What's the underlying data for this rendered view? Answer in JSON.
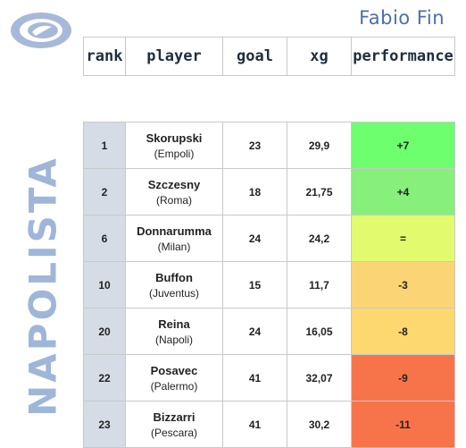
{
  "author": "Fabio Fin",
  "brand": "NAPOLISTA",
  "columns": {
    "rank": "rank",
    "player": "player",
    "goal": "goal",
    "xg": "xg",
    "performance": "performance"
  },
  "rows": [
    {
      "rank": "1",
      "name": "Skorupski",
      "team": "(Empoli)",
      "goal": "23",
      "xg": "29,9",
      "performance": "+7",
      "color": "#6eff6e"
    },
    {
      "rank": "2",
      "name": "Szczesny",
      "team": "(Roma)",
      "goal": "18",
      "xg": "21,75",
      "performance": "+4",
      "color": "#86f07a"
    },
    {
      "rank": "6",
      "name": "Donnarumma",
      "team": "(Milan)",
      "goal": "24",
      "xg": "24,2",
      "performance": "=",
      "color": "#e2fb6e"
    },
    {
      "rank": "10",
      "name": "Buffon",
      "team": "(Juventus)",
      "goal": "15",
      "xg": "11,7",
      "performance": "-3",
      "color": "#fbd476"
    },
    {
      "rank": "20",
      "name": "Reina",
      "team": "(Napoli)",
      "goal": "24",
      "xg": "16,05",
      "performance": "-8",
      "color": "#fdd86e"
    },
    {
      "rank": "22",
      "name": "Posavec",
      "team": "(Palermo)",
      "goal": "41",
      "xg": "32,07",
      "performance": "-9",
      "color": "#f7744a"
    },
    {
      "rank": "23",
      "name": "Bizzarri",
      "team": "(Pescara)",
      "goal": "41",
      "xg": "30,2",
      "performance": "-11",
      "color": "#f7744a"
    }
  ]
}
